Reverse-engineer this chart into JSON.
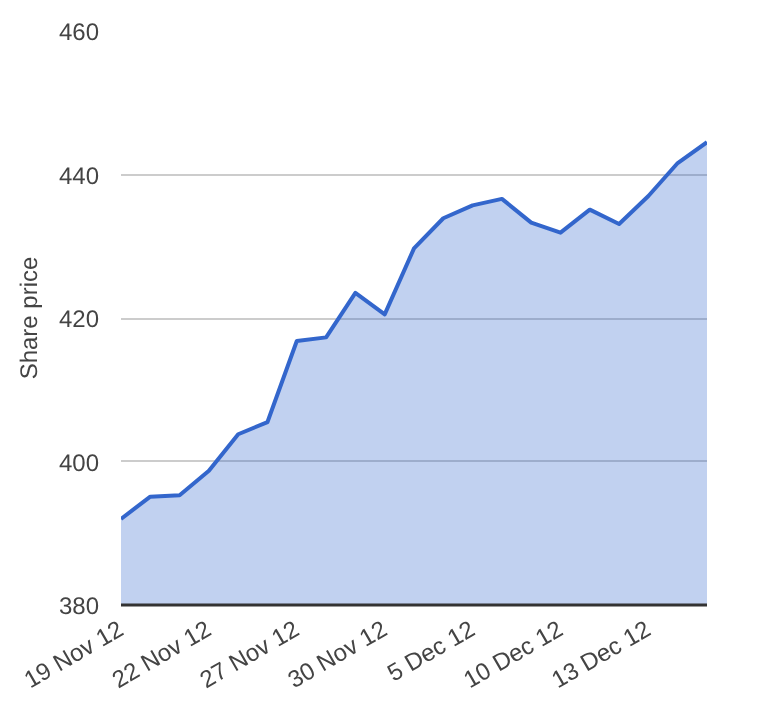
{
  "chart_data": {
    "type": "area",
    "ylabel": "Share price",
    "categories": [
      "19 Nov 12",
      null,
      null,
      "22 Nov 12",
      null,
      null,
      "27 Nov 12",
      null,
      null,
      "30 Nov 12",
      null,
      null,
      "5 Dec 12",
      null,
      null,
      "10 Dec 12",
      null,
      null,
      "13 Dec 12",
      null,
      null
    ],
    "series": [
      {
        "color": "#3366cc",
        "values": [
          392.0,
          395.1,
          395.3,
          398.7,
          403.8,
          405.5,
          416.8,
          417.3,
          423.5,
          420.5,
          429.7,
          433.9,
          435.7,
          436.6,
          433.3,
          431.9,
          435.1,
          433.1,
          437.0,
          441.6,
          444.5
        ]
      }
    ],
    "ylim": [
      380,
      460
    ],
    "yticks": [
      380,
      400,
      420,
      440,
      460
    ],
    "grid": "y"
  }
}
